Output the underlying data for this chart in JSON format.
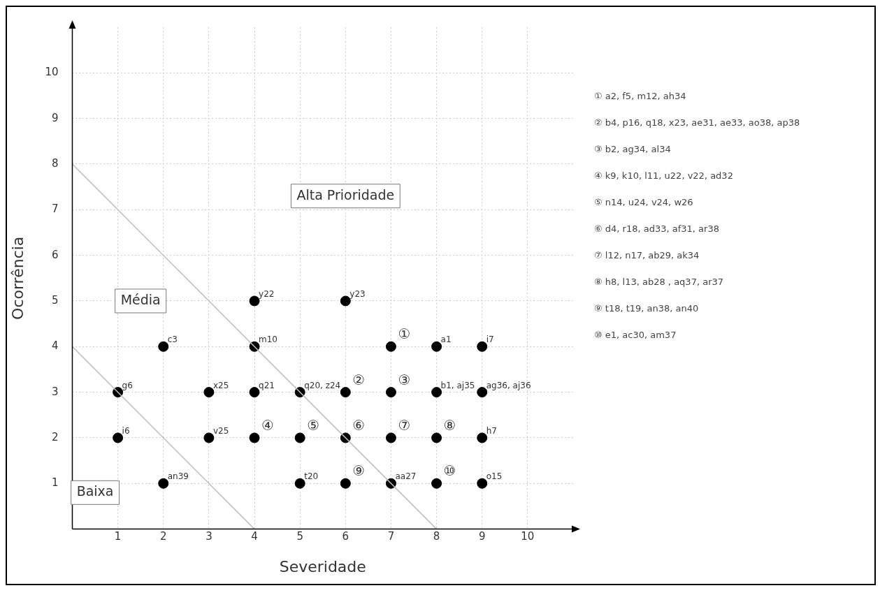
{
  "chart_data": {
    "type": "scatter",
    "xlabel": "Severidade",
    "ylabel": "Ocorrência",
    "xlim": [
      0,
      11
    ],
    "ylim": [
      0,
      11
    ],
    "xticks": [
      1,
      2,
      3,
      4,
      5,
      6,
      7,
      8,
      9,
      10
    ],
    "yticks": [
      1,
      2,
      3,
      4,
      5,
      6,
      7,
      8,
      9,
      10
    ],
    "grid": true,
    "legend": false,
    "series": [
      {
        "type": "line",
        "color": "#bdbdbd",
        "x": [
          0,
          8
        ],
        "values": [
          8,
          0
        ]
      },
      {
        "type": "line",
        "color": "#bdbdbd",
        "x": [
          0,
          4
        ],
        "values": [
          4,
          0
        ]
      },
      {
        "color": "#000000",
        "marker": "circle",
        "x": [
          4,
          6,
          2,
          4,
          7,
          8,
          9,
          1,
          3,
          4,
          5,
          6,
          7,
          8,
          9,
          1,
          3,
          4,
          5,
          6,
          7,
          8,
          9,
          2,
          5,
          6,
          7,
          8,
          9
        ],
        "values": [
          5,
          5,
          4,
          4,
          4,
          4,
          4,
          3,
          3,
          3,
          3,
          3,
          3,
          3,
          3,
          2,
          2,
          2,
          2,
          2,
          2,
          2,
          2,
          1,
          1,
          1,
          1,
          1,
          1
        ],
        "value_labels": [
          "y22",
          "y23",
          "c3",
          "m10",
          "①",
          "a1",
          "i7",
          "g6",
          "x25",
          "q21",
          "q20, z24",
          "②",
          "③",
          "b1, aj35",
          "ag36, aj36",
          "i6",
          "v25",
          "④",
          "⑤",
          "⑥",
          "⑦",
          "⑧",
          "h7",
          "an39",
          "t20",
          "⑨",
          "aa27",
          "⑩",
          "o15"
        ]
      }
    ],
    "annotations": [
      "Alta Prioridade",
      "Média",
      "Baixa",
      "① a2, f5, m12, ah34",
      "② b4, p16, q18, x23, ae31, ae33, ao38, ap38",
      "③ b2, ag34, al34",
      "④ k9, k10, l11, u22, v22, ad32",
      "⑤ n14, u24, v24, w26",
      "⑥ d4, r18, ad33, af31, ar38",
      "⑦ l12, n17, ab29, ak34",
      "⑧ h8, l13, ab28 , aq37, ar37",
      "⑨ t18, t19, an38, an40",
      "⑩ e1, ac30, am37"
    ]
  }
}
